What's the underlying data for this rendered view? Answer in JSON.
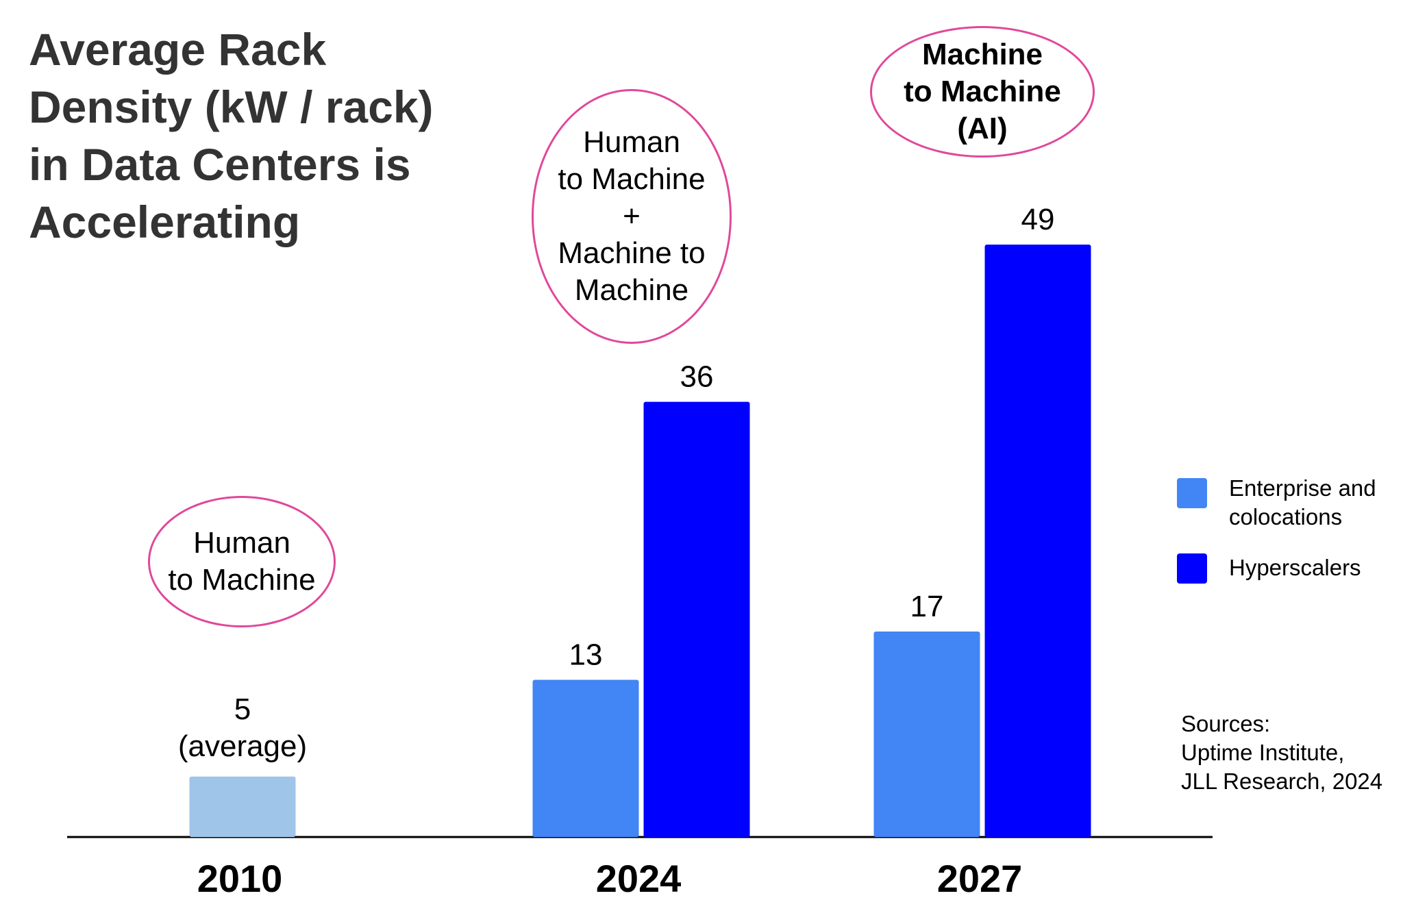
{
  "title_lines": [
    "Average Rack",
    "Density (kW / rack)",
    "in Data Centers is",
    "Accelerating"
  ],
  "chart_data": {
    "type": "bar",
    "title": "Average Rack Density (kW / rack) in Data Centers is Accelerating",
    "categories": [
      "2010",
      "2024",
      "2027"
    ],
    "series": [
      {
        "name": "Average",
        "values": [
          5,
          null,
          null
        ],
        "color": "#9fc5e8"
      },
      {
        "name": "Enterprise and colocations",
        "values": [
          null,
          13,
          17
        ],
        "color": "#4285f4"
      },
      {
        "name": "Hyperscalers",
        "values": [
          null,
          36,
          49
        ],
        "color": "#0000ff"
      }
    ],
    "data_labels": {
      "2010": [
        "5",
        "(average)"
      ],
      "2024": [
        "13",
        "36"
      ],
      "2027": [
        "17",
        "49"
      ]
    },
    "ylim": [
      0,
      55
    ],
    "xlabel": "",
    "ylabel": "",
    "grid": false,
    "legend_position": "right"
  },
  "annotations": [
    {
      "lines": [
        "Human",
        "to Machine"
      ],
      "bold": false
    },
    {
      "lines": [
        "Human",
        "to Machine",
        "+",
        "Machine to",
        "Machine"
      ],
      "bold": false
    },
    {
      "lines": [
        "Machine",
        "to Machine",
        "(AI)"
      ],
      "bold": true
    }
  ],
  "legend": [
    {
      "lines": [
        "Enterprise and",
        "colocations"
      ],
      "color": "#4285f4"
    },
    {
      "lines": [
        "Hyperscalers"
      ],
      "color": "#0000ff"
    }
  ],
  "sources": [
    "Sources:",
    "Uptime Institute,",
    "JLL Research, 2024"
  ],
  "colors": {
    "axis": "#000000",
    "annotation_border": "#e0489a",
    "title": "#333333"
  }
}
